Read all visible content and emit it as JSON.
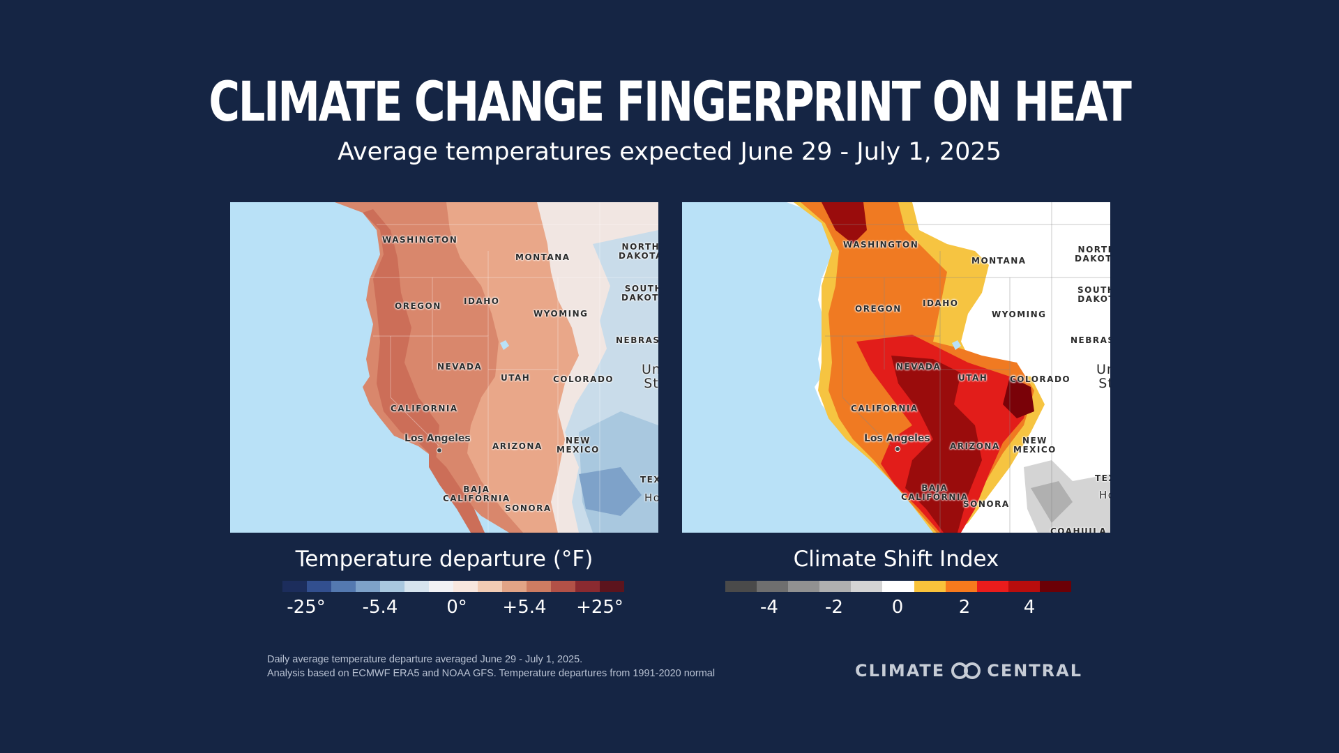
{
  "header": {
    "title": "CLIMATE CHANGE FINGERPRINT ON HEAT",
    "subtitle": "Average temperatures expected June 29 - July 1, 2025"
  },
  "left_map": {
    "legend_title": "Temperature departure (°F)",
    "scale_colors": [
      "#1c2d5c",
      "#324f8f",
      "#5479b0",
      "#7ea2c9",
      "#a9c8df",
      "#d6e4ee",
      "#f2f2f4",
      "#f8e7de",
      "#f2ccb4",
      "#e2a486",
      "#cd7c62",
      "#b25147",
      "#8a2a30",
      "#5c141d"
    ],
    "ticks": [
      "-25°",
      "-5.4",
      "0°",
      "+5.4",
      "+25°"
    ],
    "labels": {
      "washington": "WASHINGTON",
      "montana": "MONTANA",
      "north_dakota": "NORTH\nDAKOTA",
      "south_dakota": "SOUTH\nDAKOTA",
      "oregon": "OREGON",
      "idaho": "IDAHO",
      "wyoming": "WYOMING",
      "nebraska": "NEBRAS",
      "nevada": "NEVADA",
      "utah": "UTAH",
      "colorado": "COLORADO",
      "united_states": "Un\nSt",
      "california": "CALIFORNIA",
      "los_angeles": "Los Angeles",
      "arizona": "ARIZONA",
      "new_mexico": "NEW\nMEXICO",
      "baja_california": "BAJA\nCALIFORNIA",
      "sonora": "SONORA",
      "texas": "TEX",
      "houston": "Ho"
    }
  },
  "right_map": {
    "legend_title": "Climate Shift Index",
    "scale_colors": [
      "#4a4a4a",
      "#6f6f6f",
      "#919191",
      "#b0b0b0",
      "#d4d4d4",
      "#ffffff",
      "#f9c33b",
      "#f77a1d",
      "#ea1c1c",
      "#b80d0d",
      "#6b0006"
    ],
    "ticks": [
      "-4",
      "-2",
      "0",
      "2",
      "4"
    ],
    "labels": {
      "washington": "WASHINGTON",
      "montana": "MONTANA",
      "north_dakota": "NORTH\nDAKOTA",
      "south_dakota": "SOUTH\nDAKOT",
      "oregon": "OREGON",
      "idaho": "IDAHO",
      "wyoming": "WYOMING",
      "nebraska": "NEBRAS",
      "nevada": "NEVADA",
      "utah": "UTAH",
      "colorado": "COLORADO",
      "united_states": "Un\nSt",
      "california": "CALIFORNIA",
      "los_angeles": "Los Angeles",
      "arizona": "ARIZONA",
      "new_mexico": "NEW\nMEXICO",
      "baja_california": "BAJA\nCALIFORNIA",
      "sonora": "SONORA",
      "texas": "TEX",
      "houston": "Ho",
      "coahuila": "COAHUILA"
    }
  },
  "footnote": {
    "line1": "Daily average temperature departure averaged June 29 - July 1, 2025.",
    "line2": "Analysis based on ECMWF ERA5 and NOAA GFS. Temperature departures from 1991-2020 normal"
  },
  "logo": {
    "left": "CLIMATE",
    "right": "CENTRAL"
  }
}
